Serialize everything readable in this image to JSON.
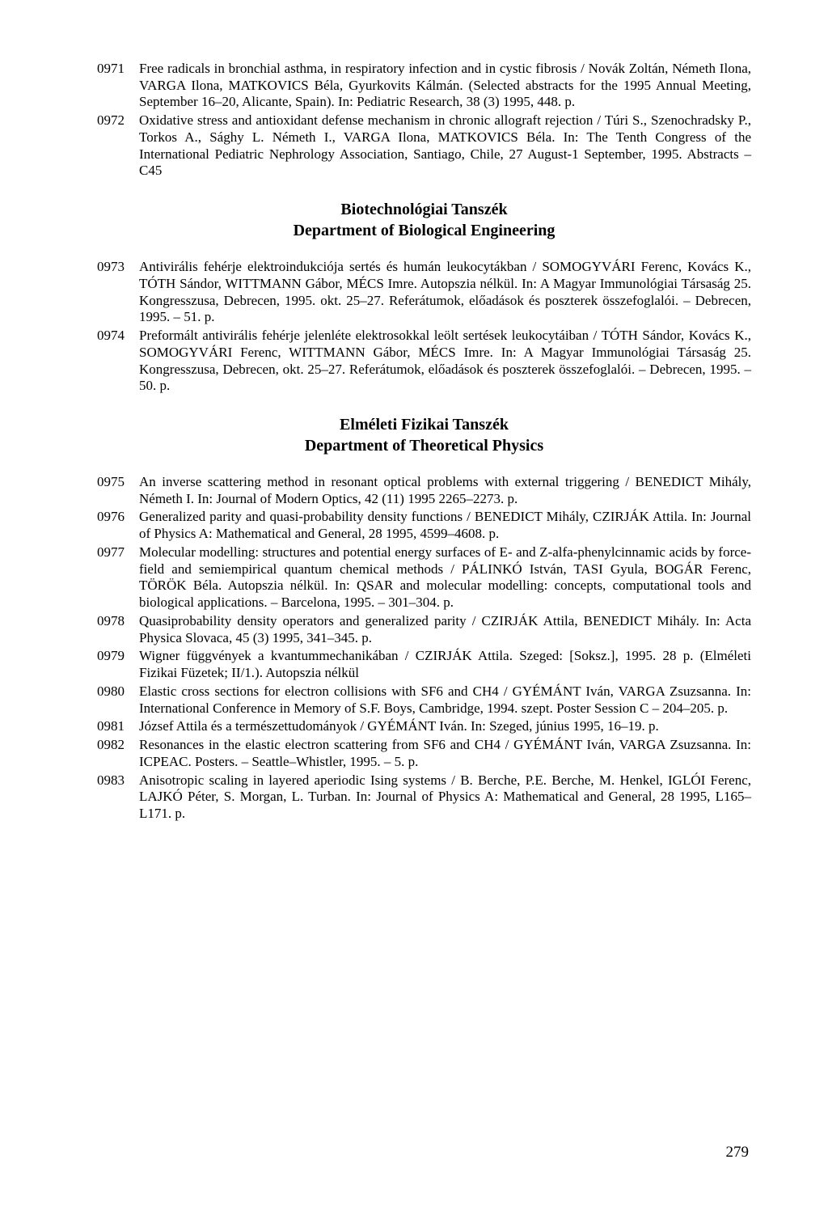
{
  "page_number": "279",
  "text_color": "#000000",
  "background_color": "#ffffff",
  "font_family": "Times New Roman",
  "sections": [
    {
      "entries": [
        {
          "num": "0971",
          "text": "Free radicals in bronchial asthma, in respiratory infection and in cystic fibrosis / Novák Zoltán, Németh Ilona, VARGA Ilona, MATKOVICS Béla, Gyurkovits Kálmán. (Selected abstracts for the 1995 Annual Meeting, September 16–20, Alicante, Spain). In: Pediatric Research, 38 (3) 1995, 448. p."
        },
        {
          "num": "0972",
          "text": "Oxidative stress and antioxidant defense mechanism in chronic allograft rejection / Túri S., Szenochradsky P., Torkos A., Sághy L. Németh I., VARGA Ilona, MATKOVICS Béla. In: The Tenth Congress of the International Pediatric Nephrology Association, Santiago, Chile, 27 August-1 September, 1995. Abstracts – C45"
        }
      ]
    },
    {
      "heading_hu": "Biotechnológiai Tanszék",
      "heading_en": "Department of Biological Engineering",
      "entries": [
        {
          "num": "0973",
          "text": "Antivirális fehérje elektroindukciója sertés és humán leukocytákban / SOMOGYVÁRI Ferenc, Kovács K., TÓTH Sándor, WITTMANN Gábor, MÉCS Imre. Autopszia nélkül. In: A Magyar Immunológiai Társaság 25. Kongresszusa, Debrecen, 1995. okt. 25–27. Referátumok, előadások és poszterek összefoglalói. – Debrecen, 1995. – 51. p."
        },
        {
          "num": "0974",
          "text": "Preformált antivirális fehérje jelenléte elektrosokkal leölt sertések leukocytáiban / TÓTH Sándor, Kovács K., SOMOGYVÁRI Ferenc, WITTMANN Gábor, MÉCS Imre. In: A Magyar Immunológiai Társaság 25. Kongresszusa, Debrecen, okt. 25–27. Referátumok, előadások és poszterek összefoglalói. – Debrecen, 1995. – 50. p."
        }
      ]
    },
    {
      "heading_hu": "Elméleti Fizikai Tanszék",
      "heading_en": "Department of Theoretical Physics",
      "entries": [
        {
          "num": "0975",
          "text": "An inverse scattering method in resonant optical problems with external triggering / BENEDICT Mihály, Németh I. In: Journal of Modern Optics, 42 (11) 1995 2265–2273. p."
        },
        {
          "num": "0976",
          "text": "Generalized parity and quasi-probability density functions / BENEDICT Mihály, CZIRJÁK Attila. In: Journal of Physics A: Mathematical and General, 28 1995, 4599–4608. p."
        },
        {
          "num": "0977",
          "text": "Molecular modelling: structures and potential energy surfaces of E- and Z-alfa-phenylcinnamic acids by force-field and semiempirical quantum chemical methods / PÁLINKÓ István, TASI Gyula, BOGÁR Ferenc, TÖRÖK Béla. Autopszia nélkül. In: QSAR and molecular modelling: concepts, computational tools and biological applications. – Barcelona, 1995. – 301–304. p."
        },
        {
          "num": "0978",
          "text": "Quasiprobability density operators and generalized parity / CZIRJÁK Attila, BENEDICT Mihály. In: Acta Physica Slovaca, 45 (3) 1995, 341–345. p."
        },
        {
          "num": "0979",
          "text": "Wigner függvények a kvantummechanikában / CZIRJÁK Attila. Szeged: [Soksz.], 1995. 28 p. (Elméleti Fizikai Füzetek; II/1.). Autopszia nélkül"
        },
        {
          "num": "0980",
          "text": "Elastic cross sections for electron collisions with SF6 and CH4 / GYÉMÁNT Iván, VARGA Zsuzsanna. In: International Conference in Memory of S.F. Boys, Cambridge, 1994. szept. Poster Session C – 204–205. p."
        },
        {
          "num": "0981",
          "text": "József Attila és a természettudományok / GYÉMÁNT Iván. In: Szeged, június 1995, 16–19. p."
        },
        {
          "num": "0982",
          "text": "Resonances in the elastic electron scattering from SF6 and CH4 / GYÉMÁNT Iván, VARGA Zsuzsanna. In: ICPEAC. Posters. – Seattle–Whistler, 1995. – 5. p."
        },
        {
          "num": "0983",
          "text": "Anisotropic scaling in layered aperiodic Ising systems / B. Berche, P.E. Berche, M. Henkel, IGLÓI Ferenc, LAJKÓ Péter, S. Morgan, L. Turban. In: Journal of Physics A: Mathematical and General, 28 1995, L165–L171. p."
        }
      ]
    }
  ]
}
